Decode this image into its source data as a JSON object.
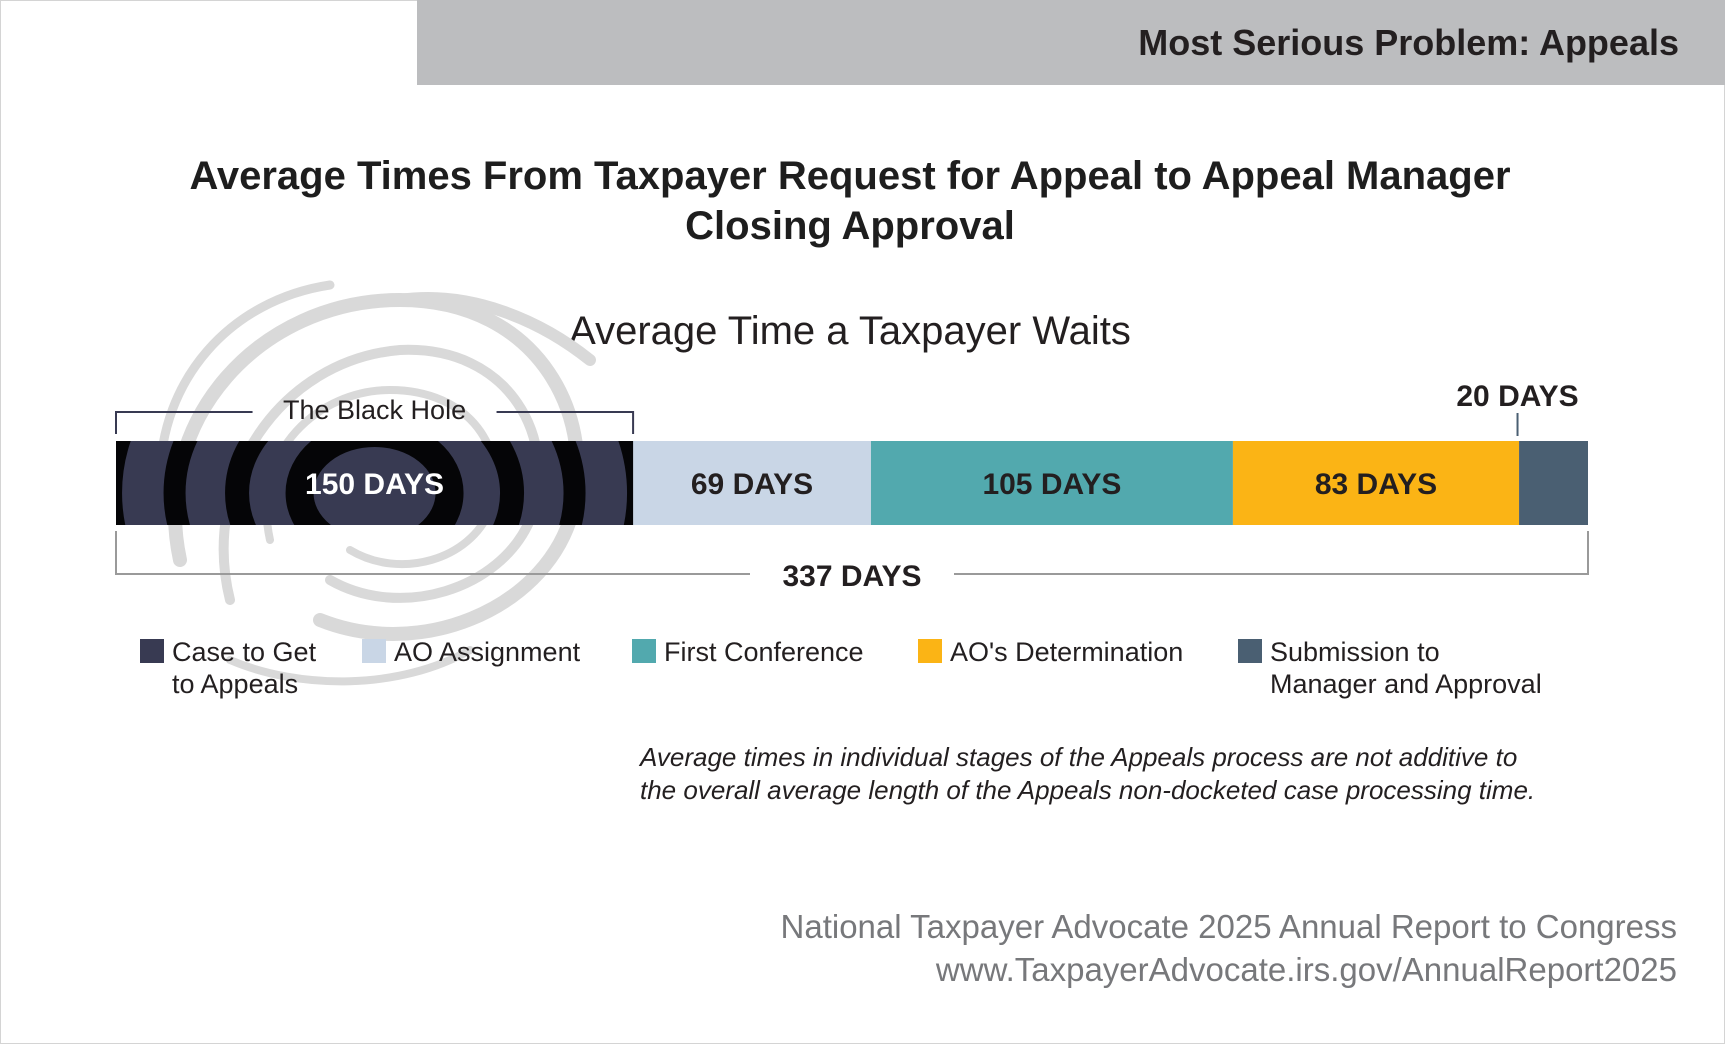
{
  "header": {
    "title": "Most Serious Problem: Appeals"
  },
  "colors": {
    "header_bg": "#bcbdbf",
    "case_to_appeals": "#383a52",
    "ao_assignment": "#c9d6e6",
    "first_conference": "#52a9ae",
    "ao_determination": "#fbb415",
    "submission": "#4a5f72"
  },
  "chart_data": {
    "type": "bar",
    "orientation": "horizontal-stacked",
    "title": "Average Times From Taxpayer Request for Appeal to Appeal Manager Closing Approval",
    "subtitle": "Average Time a Taxpayer Waits",
    "categories": [
      "Average Time a Taxpayer Waits"
    ],
    "series": [
      {
        "name": "Case to Get to Appeals",
        "values": [
          150
        ],
        "label": "150 DAYS",
        "color": "#383a52"
      },
      {
        "name": "AO Assignment",
        "values": [
          69
        ],
        "label": "69 DAYS",
        "color": "#c9d6e6"
      },
      {
        "name": "First Conference",
        "values": [
          105
        ],
        "label": "105 DAYS",
        "color": "#52a9ae"
      },
      {
        "name": "AO's Determination",
        "values": [
          83
        ],
        "label": "83 DAYS",
        "color": "#fbb415"
      },
      {
        "name": "Submission to Manager and Approval",
        "values": [
          20
        ],
        "label": "20 DAYS",
        "color": "#4a5f72"
      }
    ],
    "total_label": "337 DAYS",
    "annotations": [
      {
        "text": "The Black Hole",
        "spans_series": "Case to Get to Appeals"
      }
    ],
    "legend": {
      "position": "bottom"
    }
  },
  "legend_labels": {
    "case_to_appeals": [
      "Case to Get",
      "to Appeals"
    ],
    "ao_assignment": "AO Assignment",
    "first_conference": "First Conference",
    "ao_determination": "AO's Determination",
    "submission": [
      "Submission to",
      "Manager and Approval"
    ]
  },
  "footnote": {
    "line1": "Average times in individual stages of the Appeals process are not additive to",
    "line2": "the overall average length of the Appeals non-docketed case processing time."
  },
  "source": {
    "line1": "National Taxpayer Advocate 2025 Annual Report to Congress",
    "line2": "www.TaxpayerAdvocate.irs.gov/AnnualReport2025"
  }
}
